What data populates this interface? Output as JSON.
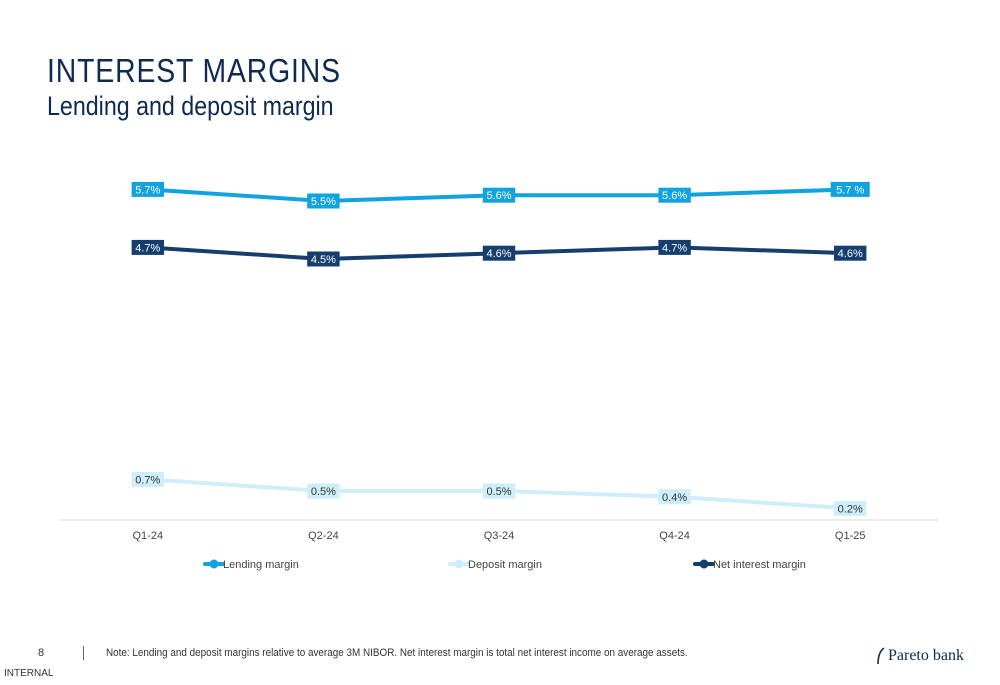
{
  "header": {
    "title": "INTEREST MARGINS",
    "subtitle": "Lending and deposit margin"
  },
  "footer": {
    "page_number": "8",
    "note": "Note: Lending and deposit margins relative to average 3M NIBOR. Net interest margin is total net interest income on average assets.",
    "classification": "INTERNAL",
    "logo_text": "Pareto bank"
  },
  "chart_data": {
    "type": "line",
    "categories": [
      "Q1-24",
      "Q2-24",
      "Q3-24",
      "Q4-24",
      "Q1-25"
    ],
    "ylim": [
      0,
      6
    ],
    "grid": false,
    "legend_position": "bottom",
    "series": [
      {
        "name": "Lending margin",
        "values": [
          5.7,
          5.5,
          5.6,
          5.6,
          5.7
        ],
        "labels": [
          "5.7%",
          "5.5%",
          "5.6%",
          "5.6%",
          "5.7 %"
        ],
        "color": "#11a3e0",
        "label_bg": "#11a3e0",
        "label_color": "#ffffff"
      },
      {
        "name": "Deposit margin",
        "values": [
          0.7,
          0.5,
          0.5,
          0.4,
          0.2
        ],
        "labels": [
          "0.7%",
          "0.5%",
          "0.5%",
          "0.4%",
          "0.2%"
        ],
        "color": "#cdeefa",
        "label_bg": "#cdeefa",
        "label_color": "#333333"
      },
      {
        "name": "Net interest margin",
        "values": [
          4.7,
          4.5,
          4.6,
          4.7,
          4.6
        ],
        "labels": [
          "4.7%",
          "4.5%",
          "4.6%",
          "4.7%",
          "4.6%"
        ],
        "color": "#153e6e",
        "label_bg": "#153e6e",
        "label_color": "#ffffff"
      }
    ]
  }
}
